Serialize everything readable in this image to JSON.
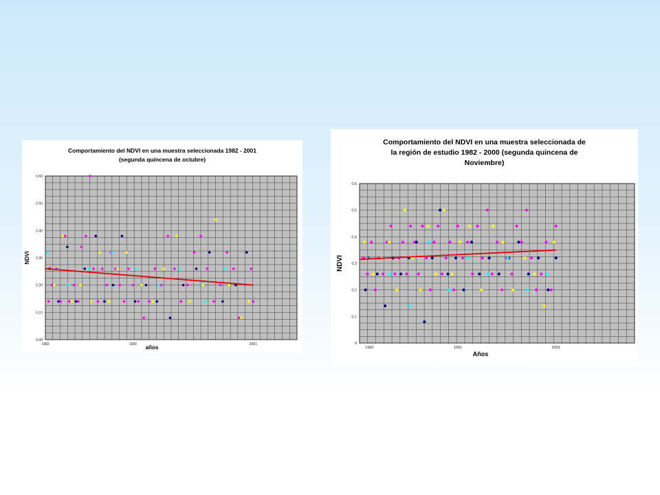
{
  "colors": {
    "plot_bg": "#c0c0c0",
    "grid": "#000000",
    "trend": "#e00000",
    "marker_palette": [
      "#ff00ff",
      "#000080",
      "#ffff00",
      "#00ffff",
      "#800080"
    ]
  },
  "chart_data": [
    {
      "type": "scatter",
      "title_lines": [
        "Comportamiento del NDVI en una muestra seleccionada 1982 - 2001",
        "(segunda quincena de octubre)"
      ],
      "xlabel": "años",
      "ylabel": "NDVI",
      "xlim": [
        1982,
        2005
      ],
      "ylim": [
        0,
        0.6
      ],
      "x_ticks": [
        1982,
        1990,
        2001
      ],
      "y_ticks": [
        "0.00",
        "0.10",
        "0.20",
        "0.30",
        "0.40",
        "0.50",
        "0.60"
      ],
      "grid": true,
      "trend_line": {
        "x": [
          1982,
          2001
        ],
        "y": [
          0.26,
          0.2
        ]
      },
      "series": [
        {
          "values": [
            [
              1982.3,
              0.14
            ],
            [
              1982.6,
              0.2
            ],
            [
              1983.0,
              0.26
            ],
            [
              1983.4,
              0.14
            ],
            [
              1983.8,
              0.38
            ],
            [
              1984.2,
              0.14
            ],
            [
              1984.6,
              0.2
            ],
            [
              1985.0,
              0.14
            ],
            [
              1985.3,
              0.34
            ],
            [
              1985.7,
              0.38
            ],
            [
              1986.1,
              0.6
            ],
            [
              1986.4,
              0.26
            ],
            [
              1986.8,
              0.14
            ],
            [
              1987.2,
              0.26
            ],
            [
              1987.6,
              0.2
            ],
            [
              1988.0,
              0.32
            ],
            [
              1988.4,
              0.26
            ],
            [
              1988.8,
              0.2
            ],
            [
              1989.2,
              0.14
            ],
            [
              1989.6,
              0.26
            ],
            [
              1990.0,
              0.2
            ],
            [
              1990.5,
              0.14
            ],
            [
              1991.0,
              0.08
            ],
            [
              1991.5,
              0.14
            ],
            [
              1992.0,
              0.26
            ],
            [
              1992.6,
              0.2
            ],
            [
              1993.2,
              0.38
            ],
            [
              1993.8,
              0.26
            ],
            [
              1994.4,
              0.14
            ],
            [
              1995.0,
              0.2
            ],
            [
              1995.6,
              0.32
            ],
            [
              1996.2,
              0.38
            ],
            [
              1996.8,
              0.26
            ],
            [
              1997.4,
              0.14
            ],
            [
              1998.0,
              0.2
            ],
            [
              1998.6,
              0.32
            ],
            [
              1999.2,
              0.26
            ],
            [
              1999.7,
              0.08
            ],
            [
              2000.2,
              0.2
            ],
            [
              2000.8,
              0.26
            ],
            [
              2001.0,
              0.14
            ]
          ]
        },
        {
          "values": [
            [
              1982.4,
              0.26
            ],
            [
              1983.2,
              0.14
            ],
            [
              1984.0,
              0.34
            ],
            [
              1984.8,
              0.14
            ],
            [
              1985.6,
              0.26
            ],
            [
              1986.6,
              0.38
            ],
            [
              1987.4,
              0.14
            ],
            [
              1988.2,
              0.2
            ],
            [
              1989.0,
              0.38
            ],
            [
              1990.2,
              0.14
            ],
            [
              1991.2,
              0.2
            ],
            [
              1992.2,
              0.14
            ],
            [
              1993.4,
              0.08
            ],
            [
              1994.6,
              0.2
            ],
            [
              1995.8,
              0.26
            ],
            [
              1997.0,
              0.32
            ],
            [
              1998.2,
              0.14
            ],
            [
              1999.4,
              0.2
            ],
            [
              2000.4,
              0.32
            ]
          ]
        },
        {
          "values": [
            [
              1982.8,
              0.2
            ],
            [
              1983.6,
              0.38
            ],
            [
              1984.4,
              0.14
            ],
            [
              1985.2,
              0.2
            ],
            [
              1986.2,
              0.14
            ],
            [
              1987.0,
              0.32
            ],
            [
              1987.8,
              0.14
            ],
            [
              1988.6,
              0.26
            ],
            [
              1989.4,
              0.32
            ],
            [
              1990.8,
              0.2
            ],
            [
              1991.8,
              0.14
            ],
            [
              1992.8,
              0.26
            ],
            [
              1994.0,
              0.38
            ],
            [
              1995.2,
              0.14
            ],
            [
              1996.4,
              0.2
            ],
            [
              1997.6,
              0.44
            ],
            [
              1998.8,
              0.2
            ],
            [
              1999.9,
              0.08
            ],
            [
              2000.6,
              0.14
            ]
          ]
        },
        {
          "values": [
            [
              1982.2,
              0.32
            ],
            [
              1984.1,
              0.2
            ],
            [
              1986.0,
              0.26
            ],
            [
              1988.1,
              0.32
            ],
            [
              1990.3,
              0.26
            ],
            [
              1992.4,
              0.2
            ],
            [
              1994.3,
              0.26
            ],
            [
              1996.6,
              0.14
            ],
            [
              1998.4,
              0.26
            ],
            [
              2000.1,
              0.2
            ]
          ]
        }
      ]
    },
    {
      "type": "scatter",
      "title_lines": [
        "Comportamiento del NDVI en una muestra seleccionada de",
        "la región de estudio 1982 - 2000 (segunda quincena de",
        "Noviembre)"
      ],
      "xlabel": "Años",
      "ylabel": "NDVI",
      "xlim": [
        1981,
        2009
      ],
      "ylim": [
        0,
        0.6
      ],
      "x_ticks": [
        1982,
        1991,
        2001
      ],
      "y_ticks": [
        "0",
        "0.1",
        "0.2",
        "0.3",
        "0.4",
        "0.5",
        "0.6"
      ],
      "grid": true,
      "trend_line": {
        "x": [
          1981,
          2001
        ],
        "y": [
          0.315,
          0.35
        ]
      },
      "series": [
        {
          "values": [
            [
              1981.4,
              0.32
            ],
            [
              1981.8,
              0.26
            ],
            [
              1982.2,
              0.38
            ],
            [
              1982.6,
              0.2
            ],
            [
              1983.0,
              0.32
            ],
            [
              1983.4,
              0.26
            ],
            [
              1983.8,
              0.38
            ],
            [
              1984.2,
              0.44
            ],
            [
              1984.6,
              0.26
            ],
            [
              1985.0,
              0.32
            ],
            [
              1985.4,
              0.38
            ],
            [
              1985.8,
              0.26
            ],
            [
              1986.2,
              0.44
            ],
            [
              1986.6,
              0.38
            ],
            [
              1987.0,
              0.26
            ],
            [
              1987.4,
              0.44
            ],
            [
              1987.8,
              0.32
            ],
            [
              1988.2,
              0.2
            ],
            [
              1988.6,
              0.38
            ],
            [
              1989.0,
              0.44
            ],
            [
              1989.4,
              0.26
            ],
            [
              1989.8,
              0.32
            ],
            [
              1990.2,
              0.38
            ],
            [
              1990.6,
              0.2
            ],
            [
              1991.0,
              0.44
            ],
            [
              1991.5,
              0.32
            ],
            [
              1992.0,
              0.38
            ],
            [
              1992.5,
              0.26
            ],
            [
              1993.0,
              0.44
            ],
            [
              1993.5,
              0.32
            ],
            [
              1994.0,
              0.5
            ],
            [
              1994.5,
              0.26
            ],
            [
              1995.0,
              0.38
            ],
            [
              1995.5,
              0.2
            ],
            [
              1996.0,
              0.32
            ],
            [
              1996.5,
              0.26
            ],
            [
              1997.0,
              0.44
            ],
            [
              1997.5,
              0.38
            ],
            [
              1998.0,
              0.5
            ],
            [
              1998.5,
              0.32
            ],
            [
              1999.0,
              0.2
            ],
            [
              1999.5,
              0.26
            ],
            [
              2000.0,
              0.38
            ],
            [
              2000.5,
              0.2
            ],
            [
              2001.0,
              0.44
            ]
          ]
        },
        {
          "values": [
            [
              1981.6,
              0.2
            ],
            [
              1982.0,
              0.32
            ],
            [
              1982.8,
              0.26
            ],
            [
              1983.6,
              0.14
            ],
            [
              1984.4,
              0.32
            ],
            [
              1985.2,
              0.26
            ],
            [
              1986.0,
              0.32
            ],
            [
              1986.8,
              0.38
            ],
            [
              1987.6,
              0.08
            ],
            [
              1988.4,
              0.32
            ],
            [
              1989.2,
              0.5
            ],
            [
              1990.0,
              0.26
            ],
            [
              1990.8,
              0.32
            ],
            [
              1991.6,
              0.2
            ],
            [
              1992.4,
              0.38
            ],
            [
              1993.2,
              0.26
            ],
            [
              1994.2,
              0.32
            ],
            [
              1995.2,
              0.26
            ],
            [
              1996.2,
              0.32
            ],
            [
              1997.2,
              0.38
            ],
            [
              1998.2,
              0.26
            ],
            [
              1999.2,
              0.32
            ],
            [
              2000.2,
              0.2
            ],
            [
              2001.0,
              0.32
            ]
          ]
        },
        {
          "values": [
            [
              1981.5,
              0.38
            ],
            [
              1982.4,
              0.26
            ],
            [
              1983.2,
              0.32
            ],
            [
              1984.0,
              0.38
            ],
            [
              1984.8,
              0.2
            ],
            [
              1985.6,
              0.5
            ],
            [
              1986.4,
              0.32
            ],
            [
              1987.2,
              0.2
            ],
            [
              1988.0,
              0.44
            ],
            [
              1988.8,
              0.26
            ],
            [
              1989.6,
              0.5
            ],
            [
              1990.4,
              0.26
            ],
            [
              1991.2,
              0.38
            ],
            [
              1992.2,
              0.44
            ],
            [
              1993.4,
              0.2
            ],
            [
              1994.6,
              0.44
            ],
            [
              1995.6,
              0.38
            ],
            [
              1996.6,
              0.2
            ],
            [
              1997.8,
              0.32
            ],
            [
              1998.8,
              0.26
            ],
            [
              1999.8,
              0.14
            ],
            [
              2000.8,
              0.38
            ]
          ]
        },
        {
          "values": [
            [
              1982.1,
              0.32
            ],
            [
              1984.1,
              0.26
            ],
            [
              1986.1,
              0.14
            ],
            [
              1988.1,
              0.38
            ],
            [
              1990.1,
              0.2
            ],
            [
              1992.1,
              0.32
            ],
            [
              1994.1,
              0.26
            ],
            [
              1996.1,
              0.32
            ],
            [
              1998.1,
              0.2
            ],
            [
              2000.1,
              0.26
            ]
          ]
        }
      ]
    }
  ]
}
